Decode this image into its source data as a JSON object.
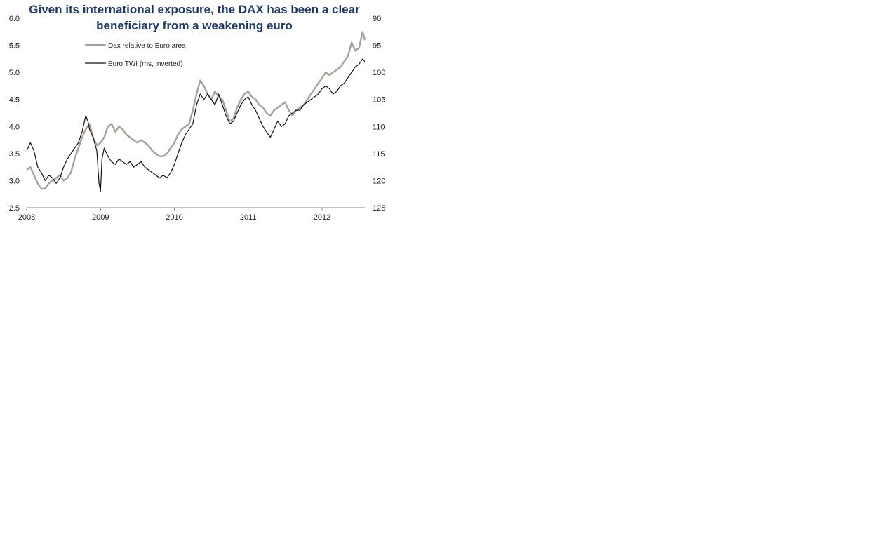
{
  "chart_data": {
    "type": "line",
    "title": "Given its international exposure, the DAX has been a clear beneficiary from a weakening euro",
    "x_ticks": [
      "2008",
      "2009",
      "2010",
      "2011",
      "2012"
    ],
    "xlim": [
      2008.0,
      2012.58
    ],
    "y_left": {
      "ylim": [
        2.5,
        6.0
      ],
      "ticks": [
        "2.5",
        "3.0",
        "3.5",
        "4.0",
        "4.5",
        "5.0",
        "5.5",
        "6.0"
      ]
    },
    "y_right": {
      "ylim": [
        90,
        125
      ],
      "inverted": true,
      "ticks": [
        "90",
        "95",
        "100",
        "105",
        "110",
        "115",
        "120",
        "125"
      ]
    },
    "legend_position": "top-left",
    "series": [
      {
        "name": "Dax relative to Euro area",
        "axis": "left",
        "color": "#a8a19b",
        "x": [
          2008.0,
          2008.05,
          2008.1,
          2008.15,
          2008.2,
          2008.25,
          2008.3,
          2008.35,
          2008.4,
          2008.45,
          2008.5,
          2008.55,
          2008.6,
          2008.65,
          2008.7,
          2008.75,
          2008.8,
          2008.85,
          2008.9,
          2008.95,
          2009.0,
          2009.05,
          2009.1,
          2009.15,
          2009.2,
          2009.25,
          2009.3,
          2009.35,
          2009.4,
          2009.45,
          2009.5,
          2009.55,
          2009.6,
          2009.65,
          2009.7,
          2009.75,
          2009.8,
          2009.85,
          2009.9,
          2009.95,
          2010.0,
          2010.05,
          2010.1,
          2010.15,
          2010.2,
          2010.25,
          2010.3,
          2010.35,
          2010.4,
          2010.45,
          2010.5,
          2010.55,
          2010.6,
          2010.65,
          2010.7,
          2010.75,
          2010.8,
          2010.85,
          2010.9,
          2010.95,
          2011.0,
          2011.05,
          2011.1,
          2011.15,
          2011.2,
          2011.25,
          2011.3,
          2011.35,
          2011.4,
          2011.45,
          2011.5,
          2011.55,
          2011.6,
          2011.65,
          2011.7,
          2011.75,
          2011.8,
          2011.85,
          2011.9,
          2011.95,
          2012.0,
          2012.05,
          2012.1,
          2012.15,
          2012.2,
          2012.25,
          2012.3,
          2012.35,
          2012.4,
          2012.45,
          2012.5,
          2012.55,
          2012.58
        ],
        "values": [
          3.2,
          3.25,
          3.1,
          2.95,
          2.85,
          2.85,
          2.95,
          3.0,
          3.05,
          3.1,
          3.0,
          3.05,
          3.15,
          3.4,
          3.6,
          3.8,
          3.95,
          4.05,
          3.8,
          3.65,
          3.7,
          3.8,
          4.0,
          4.05,
          3.9,
          4.0,
          3.95,
          3.85,
          3.8,
          3.75,
          3.7,
          3.75,
          3.7,
          3.65,
          3.55,
          3.5,
          3.45,
          3.45,
          3.5,
          3.6,
          3.7,
          3.85,
          3.95,
          4.0,
          4.05,
          4.3,
          4.6,
          4.85,
          4.75,
          4.6,
          4.5,
          4.65,
          4.55,
          4.5,
          4.3,
          4.1,
          4.15,
          4.35,
          4.5,
          4.6,
          4.65,
          4.55,
          4.5,
          4.4,
          4.35,
          4.25,
          4.2,
          4.3,
          4.35,
          4.4,
          4.45,
          4.3,
          4.2,
          4.3,
          4.35,
          4.4,
          4.5,
          4.6,
          4.7,
          4.8,
          4.9,
          5.0,
          4.95,
          5.0,
          5.05,
          5.1,
          5.2,
          5.3,
          5.55,
          5.4,
          5.45,
          5.75,
          5.6
        ]
      },
      {
        "name": "Euro TWI (rhs, inverted)",
        "axis": "right",
        "color": "#111111",
        "x": [
          2008.0,
          2008.05,
          2008.1,
          2008.15,
          2008.2,
          2008.25,
          2008.3,
          2008.35,
          2008.4,
          2008.45,
          2008.5,
          2008.55,
          2008.6,
          2008.65,
          2008.7,
          2008.75,
          2008.8,
          2008.83,
          2008.85,
          2008.9,
          2008.95,
          2008.98,
          2009.0,
          2009.02,
          2009.05,
          2009.1,
          2009.15,
          2009.2,
          2009.25,
          2009.3,
          2009.35,
          2009.4,
          2009.45,
          2009.5,
          2009.55,
          2009.6,
          2009.65,
          2009.7,
          2009.75,
          2009.8,
          2009.85,
          2009.9,
          2009.95,
          2010.0,
          2010.05,
          2010.1,
          2010.15,
          2010.2,
          2010.25,
          2010.3,
          2010.35,
          2010.4,
          2010.45,
          2010.5,
          2010.55,
          2010.6,
          2010.65,
          2010.7,
          2010.75,
          2010.8,
          2010.85,
          2010.9,
          2010.95,
          2011.0,
          2011.05,
          2011.1,
          2011.15,
          2011.2,
          2011.25,
          2011.3,
          2011.35,
          2011.4,
          2011.45,
          2011.5,
          2011.55,
          2011.6,
          2011.65,
          2011.7,
          2011.75,
          2011.8,
          2011.85,
          2011.9,
          2011.95,
          2012.0,
          2012.05,
          2012.1,
          2012.15,
          2012.2,
          2012.25,
          2012.3,
          2012.35,
          2012.4,
          2012.45,
          2012.5,
          2012.55,
          2012.58
        ],
        "values": [
          114.5,
          113.0,
          114.5,
          117.5,
          118.5,
          120.0,
          119.0,
          119.5,
          120.5,
          119.5,
          117.5,
          116.0,
          115.0,
          114.0,
          113.0,
          111.0,
          108.0,
          109.0,
          110.5,
          112.0,
          114.5,
          120.5,
          122.0,
          116.0,
          114.0,
          115.5,
          116.5,
          117.0,
          116.0,
          116.5,
          117.0,
          116.5,
          117.5,
          117.0,
          116.5,
          117.5,
          118.0,
          118.5,
          119.0,
          119.5,
          119.0,
          119.5,
          118.5,
          117.0,
          115.0,
          113.0,
          111.5,
          110.5,
          109.5,
          106.0,
          104.0,
          105.0,
          104.0,
          105.0,
          106.0,
          104.0,
          106.0,
          108.0,
          109.5,
          109.0,
          107.5,
          106.0,
          105.0,
          104.5,
          106.0,
          107.0,
          108.5,
          110.0,
          111.0,
          112.0,
          110.5,
          109.0,
          110.0,
          109.5,
          108.0,
          107.5,
          107.0,
          107.0,
          106.0,
          105.5,
          105.0,
          104.5,
          104.0,
          103.0,
          102.5,
          103.0,
          104.0,
          103.5,
          102.5,
          102.0,
          101.0,
          100.0,
          99.0,
          98.5,
          97.5,
          98.0
        ]
      }
    ]
  }
}
